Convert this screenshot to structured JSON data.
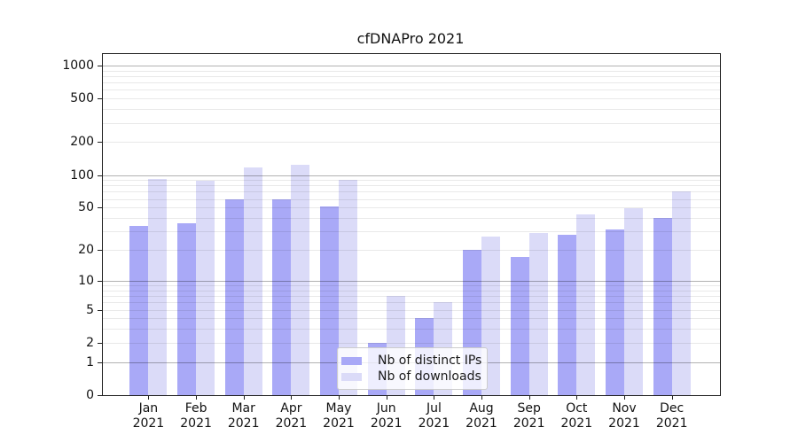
{
  "chart_data": {
    "type": "bar",
    "title": "cfDNAPro 2021",
    "categories": [
      "Jan 2021",
      "Feb 2021",
      "Mar 2021",
      "Apr 2021",
      "May 2021",
      "Jun 2021",
      "Jul 2021",
      "Aug 2021",
      "Sep 2021",
      "Oct 2021",
      "Nov 2021",
      "Dec 2021"
    ],
    "month_labels": [
      "Jan",
      "Feb",
      "Mar",
      "Apr",
      "May",
      "Jun",
      "Jul",
      "Aug",
      "Sep",
      "Oct",
      "Nov",
      "Dec"
    ],
    "year": "2021",
    "series": [
      {
        "name": "Nb of distinct IPs",
        "color": "#a9a9f7",
        "values": [
          34,
          36,
          60,
          60,
          51,
          2,
          4,
          20,
          17,
          28,
          31,
          40
        ]
      },
      {
        "name": "Nb of downloads",
        "color": "#dbdbf8",
        "values": [
          92,
          89,
          118,
          123,
          90,
          7,
          6,
          27,
          29,
          43,
          49,
          70
        ]
      }
    ],
    "xlabel": "",
    "ylabel": "",
    "yscale": "log10(value+1)",
    "yticks": [
      0,
      1,
      2,
      5,
      10,
      20,
      50,
      100,
      200,
      500,
      1000
    ],
    "ylim": [
      0,
      1272
    ],
    "grid": "on",
    "grid_major_at": [
      1,
      10,
      100,
      1000
    ],
    "legend_position": "lower-center-inside",
    "colors": {
      "grid_major": "#b3b3b3",
      "grid_minor": "#e9e9e9",
      "axis": "#1f1f1f"
    }
  }
}
